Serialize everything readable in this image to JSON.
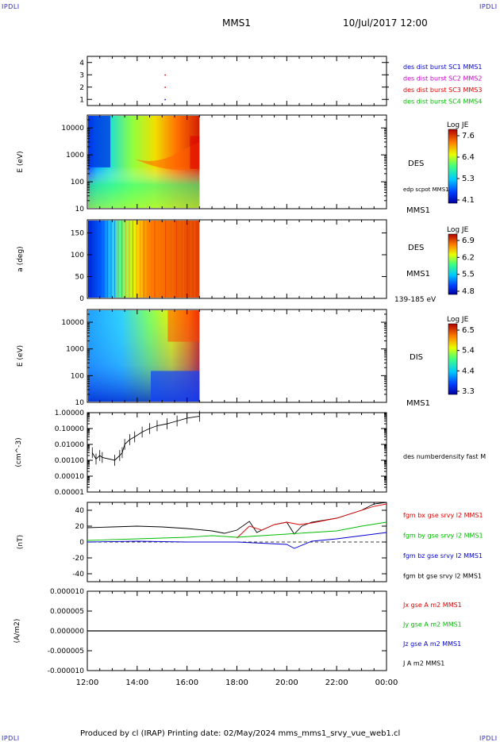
{
  "header": {
    "corner_left": "IPDLI",
    "corner_right": "IPDLI",
    "title": "MMS1",
    "date": "10/Jul/2017 12:00"
  },
  "footer": {
    "text": "Produced by cl (IRAP)   Printing date: 02/May/2024   mms_mms1_srvy_vue_web1.cl",
    "corner_left": "IPDLI",
    "corner_right": "IPDLI"
  },
  "x_axis": {
    "ticks": [
      "12:00",
      "14:00",
      "16:00",
      "18:00",
      "20:00",
      "22:00",
      "00:00"
    ],
    "range_hours": [
      12,
      24
    ]
  },
  "colors": {
    "mms1": "#0000cc",
    "mms2": "#cc00cc",
    "mms3": "#dd0000",
    "mms4": "#00bb00",
    "bx": "#dd0000",
    "by": "#00bb00",
    "bz": "#0000cc",
    "bt": "#000000"
  },
  "chart_data": [
    {
      "type": "scatter",
      "panel": "spacecraft",
      "ylabel": "",
      "yticks": [
        "4",
        "3",
        "2",
        "1"
      ],
      "ylim": [
        0.5,
        4.5
      ],
      "legend": [
        "des dist burst SC1 MMS1",
        "des dist burst SC2 MMS2",
        "des dist burst SC3 MMS3",
        "des dist burst SC4 MMS4"
      ],
      "points": [
        {
          "x": 15.1,
          "y": 3,
          "series": "MMS3"
        },
        {
          "x": 15.1,
          "y": 2,
          "series": "MMS3"
        },
        {
          "x": 15.1,
          "y": 1,
          "series": "MMS1"
        }
      ]
    },
    {
      "type": "heatmap",
      "panel": "des-energy",
      "ylabel": "E (eV)",
      "yticks": [
        "10000",
        "1000",
        "100",
        "10"
      ],
      "scale": "log",
      "ylim": [
        10,
        30000
      ],
      "xlim_data": [
        12,
        16.5
      ],
      "colorbar": {
        "title": "Log JE",
        "ticks": [
          "7.6",
          "6.4",
          "5.3",
          "4.1"
        ]
      },
      "labels": [
        "DES",
        "edp scpot MMS1",
        "MMS1"
      ]
    },
    {
      "type": "heatmap",
      "panel": "des-pitch",
      "ylabel": "a (deg)",
      "yticks": [
        "150",
        "100",
        "50",
        "0"
      ],
      "ylim": [
        0,
        180
      ],
      "xlim_data": [
        12,
        16.5
      ],
      "colorbar": {
        "title": "Log JE",
        "ticks": [
          "6.9",
          "6.2",
          "5.5",
          "4.8"
        ]
      },
      "labels": [
        "DES",
        "MMS1",
        "139-185 eV"
      ]
    },
    {
      "type": "heatmap",
      "panel": "dis-energy",
      "ylabel": "E (eV)",
      "yticks": [
        "10000",
        "1000",
        "100",
        "10"
      ],
      "scale": "log",
      "ylim": [
        10,
        30000
      ],
      "xlim_data": [
        12,
        16.5
      ],
      "colorbar": {
        "title": "Log JE",
        "ticks": [
          "6.5",
          "5.4",
          "4.4",
          "3.3"
        ]
      },
      "labels": [
        "DIS",
        "MMS1"
      ]
    },
    {
      "type": "line",
      "panel": "density",
      "ylabel": "(cm^-3)",
      "yticks": [
        "1.00000",
        "0.10000",
        "0.01000",
        "0.00100",
        "0.00010",
        "0.00001"
      ],
      "scale": "log",
      "ylim": [
        1e-05,
        1
      ],
      "legend": [
        "des numberdensity fast M"
      ],
      "points": [
        [
          12.2,
          0.003
        ],
        [
          12.35,
          0.0012
        ],
        [
          12.5,
          0.002
        ],
        [
          12.6,
          0.0015
        ],
        [
          13.1,
          0.001
        ],
        [
          13.3,
          0.002
        ],
        [
          13.4,
          0.003
        ],
        [
          13.5,
          0.01
        ],
        [
          13.7,
          0.02
        ],
        [
          13.9,
          0.03
        ],
        [
          14.2,
          0.06
        ],
        [
          14.5,
          0.1
        ],
        [
          14.8,
          0.15
        ],
        [
          15.2,
          0.2
        ],
        [
          15.6,
          0.3
        ],
        [
          16.0,
          0.45
        ],
        [
          16.5,
          0.6
        ]
      ]
    },
    {
      "type": "line",
      "panel": "fgm",
      "ylabel": "(nT)",
      "yticks": [
        "40",
        "20",
        "0",
        "-20",
        "-40"
      ],
      "ylim": [
        -50,
        50
      ],
      "legend": [
        "fgm bx gse srvy l2 MMS1",
        "fgm by gse srvy l2 MMS1",
        "fgm bz gse srvy l2 MMS1",
        "fgm bt gse srvy l2 MMS1"
      ],
      "series": [
        {
          "name": "fgm bt gse srvy l2 MMS1",
          "points": [
            [
              12,
              18
            ],
            [
              13,
              19
            ],
            [
              14,
              20
            ],
            [
              15,
              19
            ],
            [
              16,
              17
            ],
            [
              17,
              14
            ],
            [
              17.5,
              11
            ],
            [
              18,
              15
            ],
            [
              18.5,
              26
            ],
            [
              18.8,
              12
            ],
            [
              19,
              15
            ],
            [
              19.5,
              22
            ],
            [
              20,
              25
            ],
            [
              20.3,
              10
            ],
            [
              20.6,
              20
            ],
            [
              21,
              25
            ],
            [
              22,
              30
            ],
            [
              23,
              40
            ],
            [
              23.5,
              48
            ],
            [
              24,
              50
            ]
          ]
        },
        {
          "name": "fgm bx gse srvy l2 MMS1",
          "points": [
            [
              18,
              5
            ],
            [
              18.5,
              20
            ],
            [
              19,
              15
            ],
            [
              19.5,
              22
            ],
            [
              20,
              25
            ],
            [
              20.5,
              22
            ],
            [
              21,
              24
            ],
            [
              22,
              30
            ],
            [
              23,
              40
            ],
            [
              23.5,
              45
            ],
            [
              24,
              48
            ]
          ]
        },
        {
          "name": "fgm by gse srvy l2 MMS1",
          "points": [
            [
              12,
              2
            ],
            [
              14,
              4
            ],
            [
              16,
              6
            ],
            [
              17,
              8
            ],
            [
              18,
              6
            ],
            [
              19,
              8
            ],
            [
              20,
              10
            ],
            [
              21,
              12
            ],
            [
              22,
              14
            ],
            [
              23,
              20
            ],
            [
              24,
              25
            ]
          ]
        },
        {
          "name": "fgm bz gse srvy l2 MMS1",
          "points": [
            [
              12,
              0
            ],
            [
              14,
              1
            ],
            [
              16,
              0
            ],
            [
              18,
              0
            ],
            [
              20,
              -3
            ],
            [
              20.3,
              -8
            ],
            [
              21,
              1
            ],
            [
              22,
              4
            ],
            [
              23,
              8
            ],
            [
              24,
              12
            ]
          ]
        }
      ]
    },
    {
      "type": "line",
      "panel": "current",
      "ylabel": "(A/m2)",
      "yticks": [
        "0.000010",
        "0.000005",
        "0.000000",
        "-0.000005",
        "-0.000010"
      ],
      "ylim": [
        -1e-05,
        1e-05
      ],
      "legend": [
        "Jx gse A m2 MMS1",
        "Jy gse A m2 MMS1",
        "Jz gse A m2 MMS1",
        "J A m2 MMS1"
      ],
      "series": [
        {
          "name": "J A m2 MMS1",
          "points": [
            [
              12,
              0
            ],
            [
              24,
              0
            ]
          ]
        }
      ]
    }
  ]
}
